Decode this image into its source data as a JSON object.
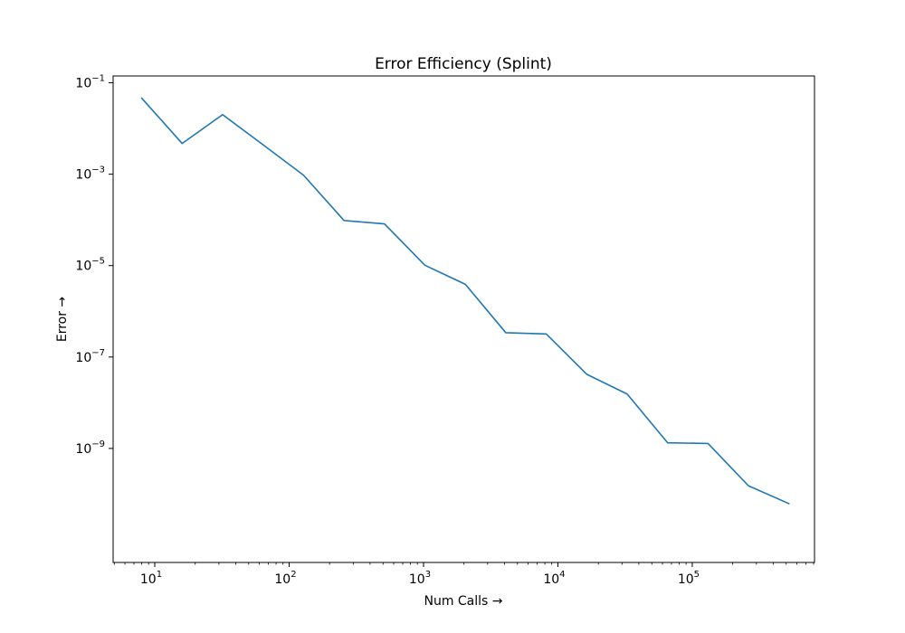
{
  "chart_data": {
    "type": "line",
    "title": "Error Efficiency (Splint)",
    "xlabel": "Num Calls →",
    "ylabel": "Error →",
    "x_scale": "log",
    "y_scale": "log",
    "xlim": [
      4.9,
      812000
    ],
    "ylim": [
      3.2e-12,
      0.141
    ],
    "grid": false,
    "x_ticks": [
      {
        "value": 10,
        "base": "10",
        "exp": "1"
      },
      {
        "value": 100,
        "base": "10",
        "exp": "2"
      },
      {
        "value": 1000,
        "base": "10",
        "exp": "3"
      },
      {
        "value": 10000,
        "base": "10",
        "exp": "4"
      },
      {
        "value": 100000,
        "base": "10",
        "exp": "5"
      }
    ],
    "y_ticks": [
      {
        "value": 0.1,
        "base": "10",
        "exp": "−1"
      },
      {
        "value": 0.001,
        "base": "10",
        "exp": "−3"
      },
      {
        "value": 1e-05,
        "base": "10",
        "exp": "−5"
      },
      {
        "value": 1e-07,
        "base": "10",
        "exp": "−7"
      },
      {
        "value": 1e-09,
        "base": "10",
        "exp": "−9"
      }
    ],
    "series": [
      {
        "color": "#1f77b4",
        "x": [
          8,
          16,
          32,
          64,
          128,
          256,
          512,
          1024,
          2048,
          4096,
          8192,
          16384,
          32768,
          65536,
          131072,
          262144,
          524288
        ],
        "y": [
          0.046,
          0.0047,
          0.0201,
          0.0044,
          0.00095,
          9.7e-05,
          8.2e-05,
          1.02e-05,
          3.9e-06,
          3.4e-07,
          3.2e-07,
          4.2e-08,
          1.55e-08,
          1.33e-09,
          1.28e-09,
          1.52e-10,
          6.2e-11
        ]
      }
    ]
  }
}
